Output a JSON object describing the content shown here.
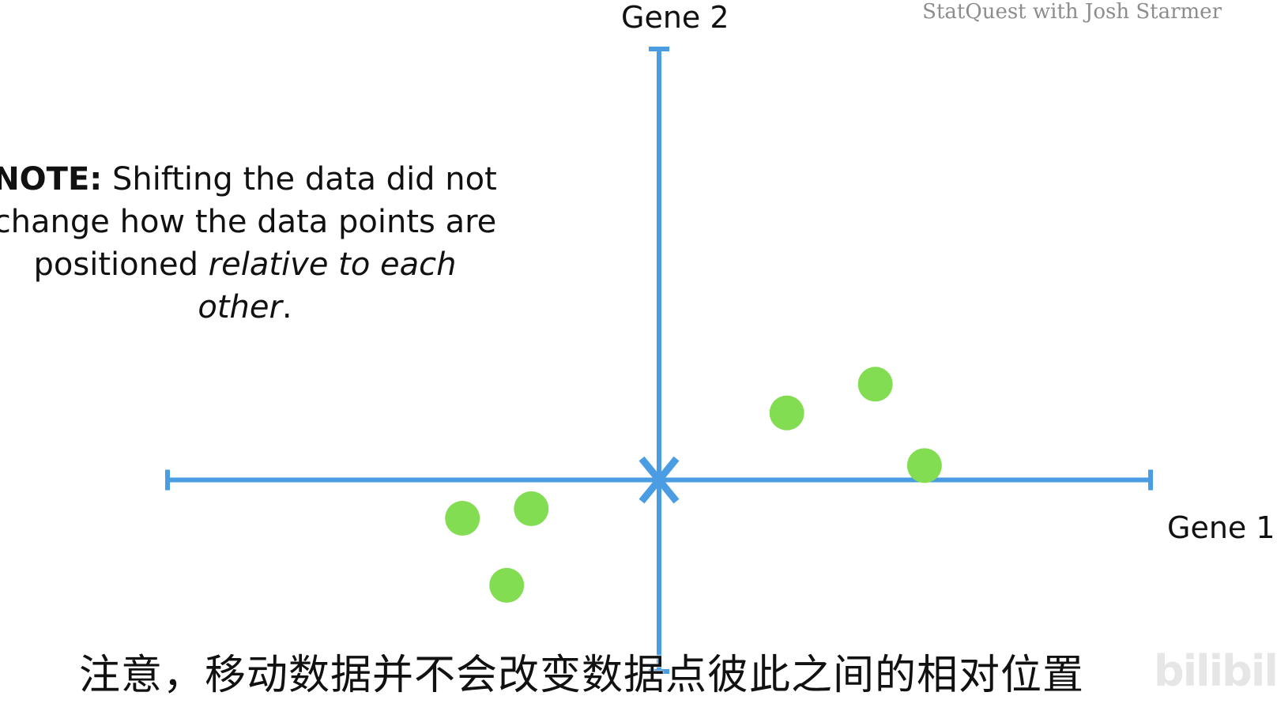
{
  "chart_data": {
    "type": "scatter",
    "xlabel": "Gene 1",
    "ylabel": "Gene 2",
    "xlim": [
      -10,
      10
    ],
    "ylim": [
      -4,
      9
    ],
    "points": [
      {
        "x": 2.6,
        "y": 1.4
      },
      {
        "x": 4.4,
        "y": 2.0
      },
      {
        "x": 5.4,
        "y": 0.3
      },
      {
        "x": -4.0,
        "y": -0.8
      },
      {
        "x": -2.6,
        "y": -0.6
      },
      {
        "x": -3.1,
        "y": -2.2
      }
    ],
    "origin_marker": "x",
    "grid": false,
    "colors": {
      "axis": "#4a9de2",
      "points": "#83dd52"
    }
  },
  "note": {
    "bold": "NOTE:",
    "line1": " Shifting the data did not",
    "line2": "change how the data points are",
    "line3_plain": "positioned ",
    "line3_italic": "relative to each",
    "line4_italic": "other",
    "line4_end": "."
  },
  "watermark": "StatQuest with Josh Starmer",
  "subtitle": "注意，移动数据并不会改变数据点彼此之间的相对位置",
  "logo_text": "bilibili"
}
